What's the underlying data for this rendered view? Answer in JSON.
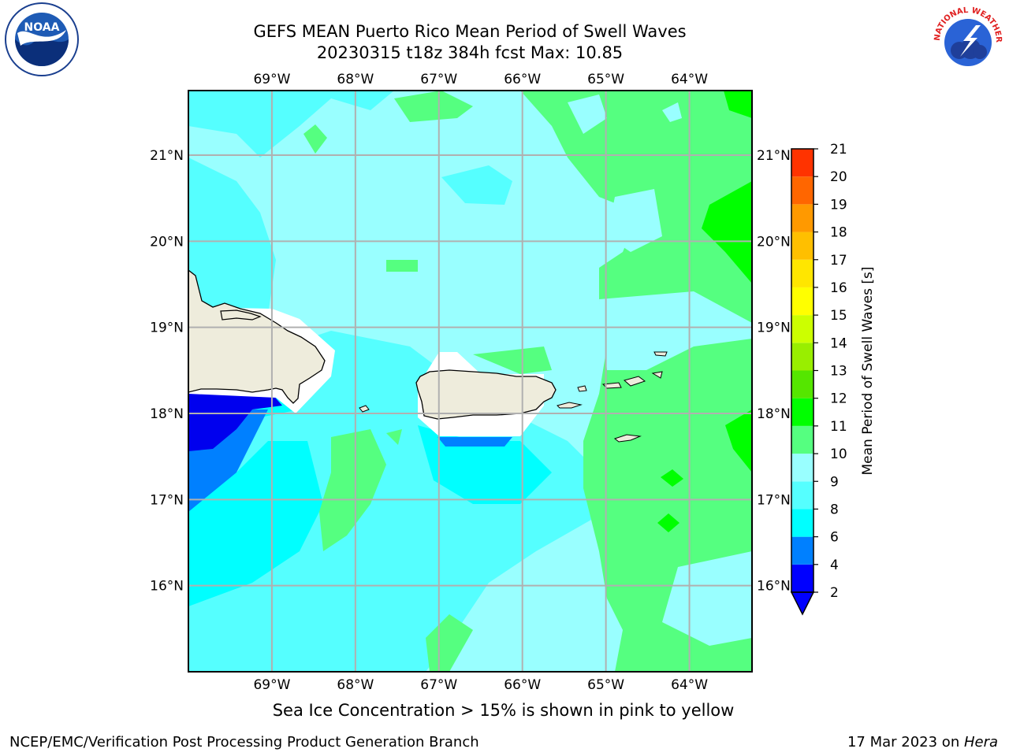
{
  "title_line1": "GEFS MEAN Puerto Rico Mean Period of Swell Waves",
  "title_line2": "20230315 t18z 384h fcst   Max: 10.85",
  "map": {
    "lon_range": [
      -70,
      -63.25
    ],
    "lat_range": [
      15,
      21.75
    ],
    "lon_ticks": [
      {
        "value": -69,
        "label": "69°W"
      },
      {
        "value": -68,
        "label": "68°W"
      },
      {
        "value": -67,
        "label": "67°W"
      },
      {
        "value": -66,
        "label": "66°W"
      },
      {
        "value": -65,
        "label": "65°W"
      },
      {
        "value": -64,
        "label": "64°W"
      }
    ],
    "lat_ticks": [
      {
        "value": 21,
        "label": "21°N"
      },
      {
        "value": 20,
        "label": "20°N"
      },
      {
        "value": 19,
        "label": "19°N"
      },
      {
        "value": 18,
        "label": "18°N"
      },
      {
        "value": 17,
        "label": "17°N"
      },
      {
        "value": 16,
        "label": "16°N"
      }
    ],
    "gridlines": true,
    "land_color": "#eeecdc"
  },
  "colorbar": {
    "label": "Mean Period of Swell Waves [s]",
    "levels": [
      "2",
      "4",
      "6",
      "8",
      "9",
      "10",
      "11",
      "12",
      "13",
      "14",
      "15",
      "16",
      "17",
      "18",
      "19",
      "20",
      "21"
    ],
    "colors": [
      "#0000ff",
      "#0080ff",
      "#00ffff",
      "#55ffff",
      "#99ffff",
      "#55ff80",
      "#00ff00",
      "#55e600",
      "#99ee00",
      "#ccff00",
      "#ffff00",
      "#ffe600",
      "#ffbf00",
      "#ff9900",
      "#ff6600",
      "#ff3300",
      "#ff0000"
    ],
    "extend_min_color": "#0000ff"
  },
  "field_colors": {
    "deep_blue": "#0000ee",
    "mid_blue": "#0080ff",
    "cyan": "#00ffff",
    "light_cyan": "#55ffff",
    "pale_cyan": "#99ffff",
    "green": "#55ff80",
    "bright_green": "#00ff00",
    "white": "#ffffff"
  },
  "logos": {
    "noaa": "NOAA",
    "nws": "NATIONAL WEATHER SERVICE"
  },
  "subtitle": "Sea Ice Concentration > 15% is shown in pink to yellow",
  "footer_left": "NCEP/EMC/Verification Post Processing Product Generation Branch",
  "footer_date": "17 Mar 2023 on ",
  "footer_machine": "Hera"
}
